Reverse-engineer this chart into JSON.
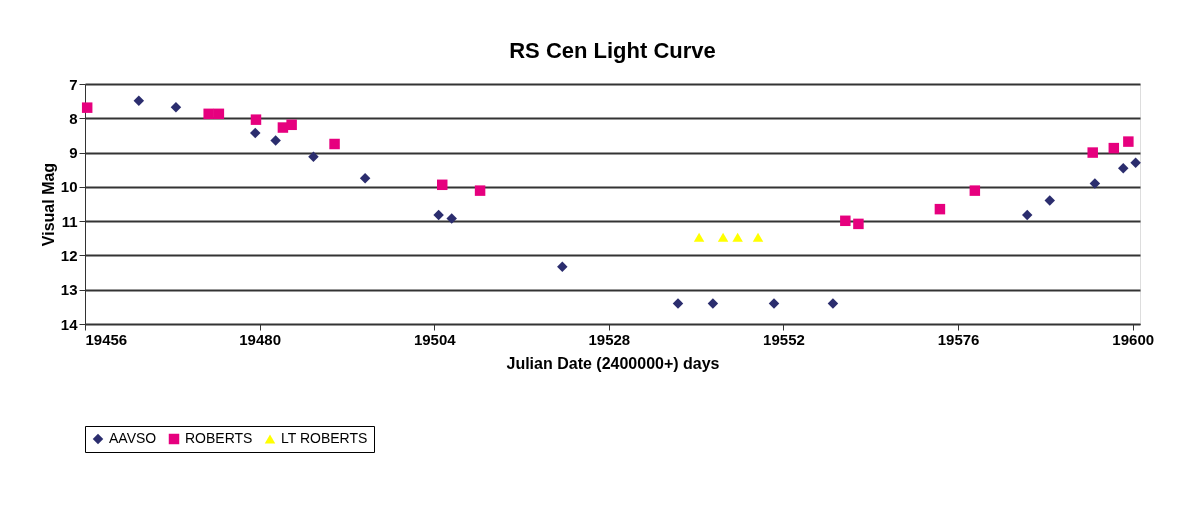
{
  "chart_data": {
    "type": "scatter",
    "title": "RS Cen Light Curve",
    "xlabel": "Julian Date (2400000+) days",
    "ylabel": "Visual Mag",
    "xlim": [
      19456,
      19601
    ],
    "xticks": [
      19456,
      19480,
      19504,
      19528,
      19552,
      19576,
      19600
    ],
    "ylim": [
      14,
      7
    ],
    "yticks": [
      7,
      8,
      9,
      10,
      11,
      12,
      13,
      14
    ],
    "grid": "y",
    "legend": "bottom",
    "series": [
      {
        "name": "AAVSO",
        "color": "#2b2d6e",
        "marker": "diamond",
        "x": [
          19463.4,
          19468.5,
          19479.4,
          19482.2,
          19487.4,
          19494.5,
          19504.6,
          19506.4,
          19521.6,
          19537.5,
          19542.3,
          19550.7,
          19558.8,
          19585.5,
          19588.6,
          19594.8,
          19598.7,
          19600.4
        ],
        "values": [
          7.49,
          7.68,
          8.43,
          8.65,
          9.12,
          9.75,
          10.82,
          10.92,
          12.33,
          13.4,
          13.4,
          13.4,
          13.4,
          10.82,
          10.4,
          9.9,
          9.46,
          9.3
        ]
      },
      {
        "name": "ROBERTS",
        "color": "#e6007e",
        "marker": "square",
        "x": [
          19456.3,
          19473.0,
          19474.4,
          19479.5,
          19483.2,
          19484.4,
          19490.3,
          19505.1,
          19510.3,
          19560.5,
          19562.3,
          19573.5,
          19578.3,
          19594.5,
          19597.4,
          19599.4
        ],
        "values": [
          7.69,
          7.87,
          7.87,
          8.04,
          8.27,
          8.19,
          8.75,
          9.94,
          10.11,
          10.99,
          11.08,
          10.65,
          10.11,
          9.0,
          8.87,
          8.68
        ]
      },
      {
        "name": "LT ROBERTS",
        "color": "#ffff00",
        "marker": "triangle",
        "x": [
          19540.4,
          19543.7,
          19545.7,
          19548.5
        ],
        "values": [
          11.47,
          11.47,
          11.47,
          11.47
        ]
      }
    ]
  }
}
